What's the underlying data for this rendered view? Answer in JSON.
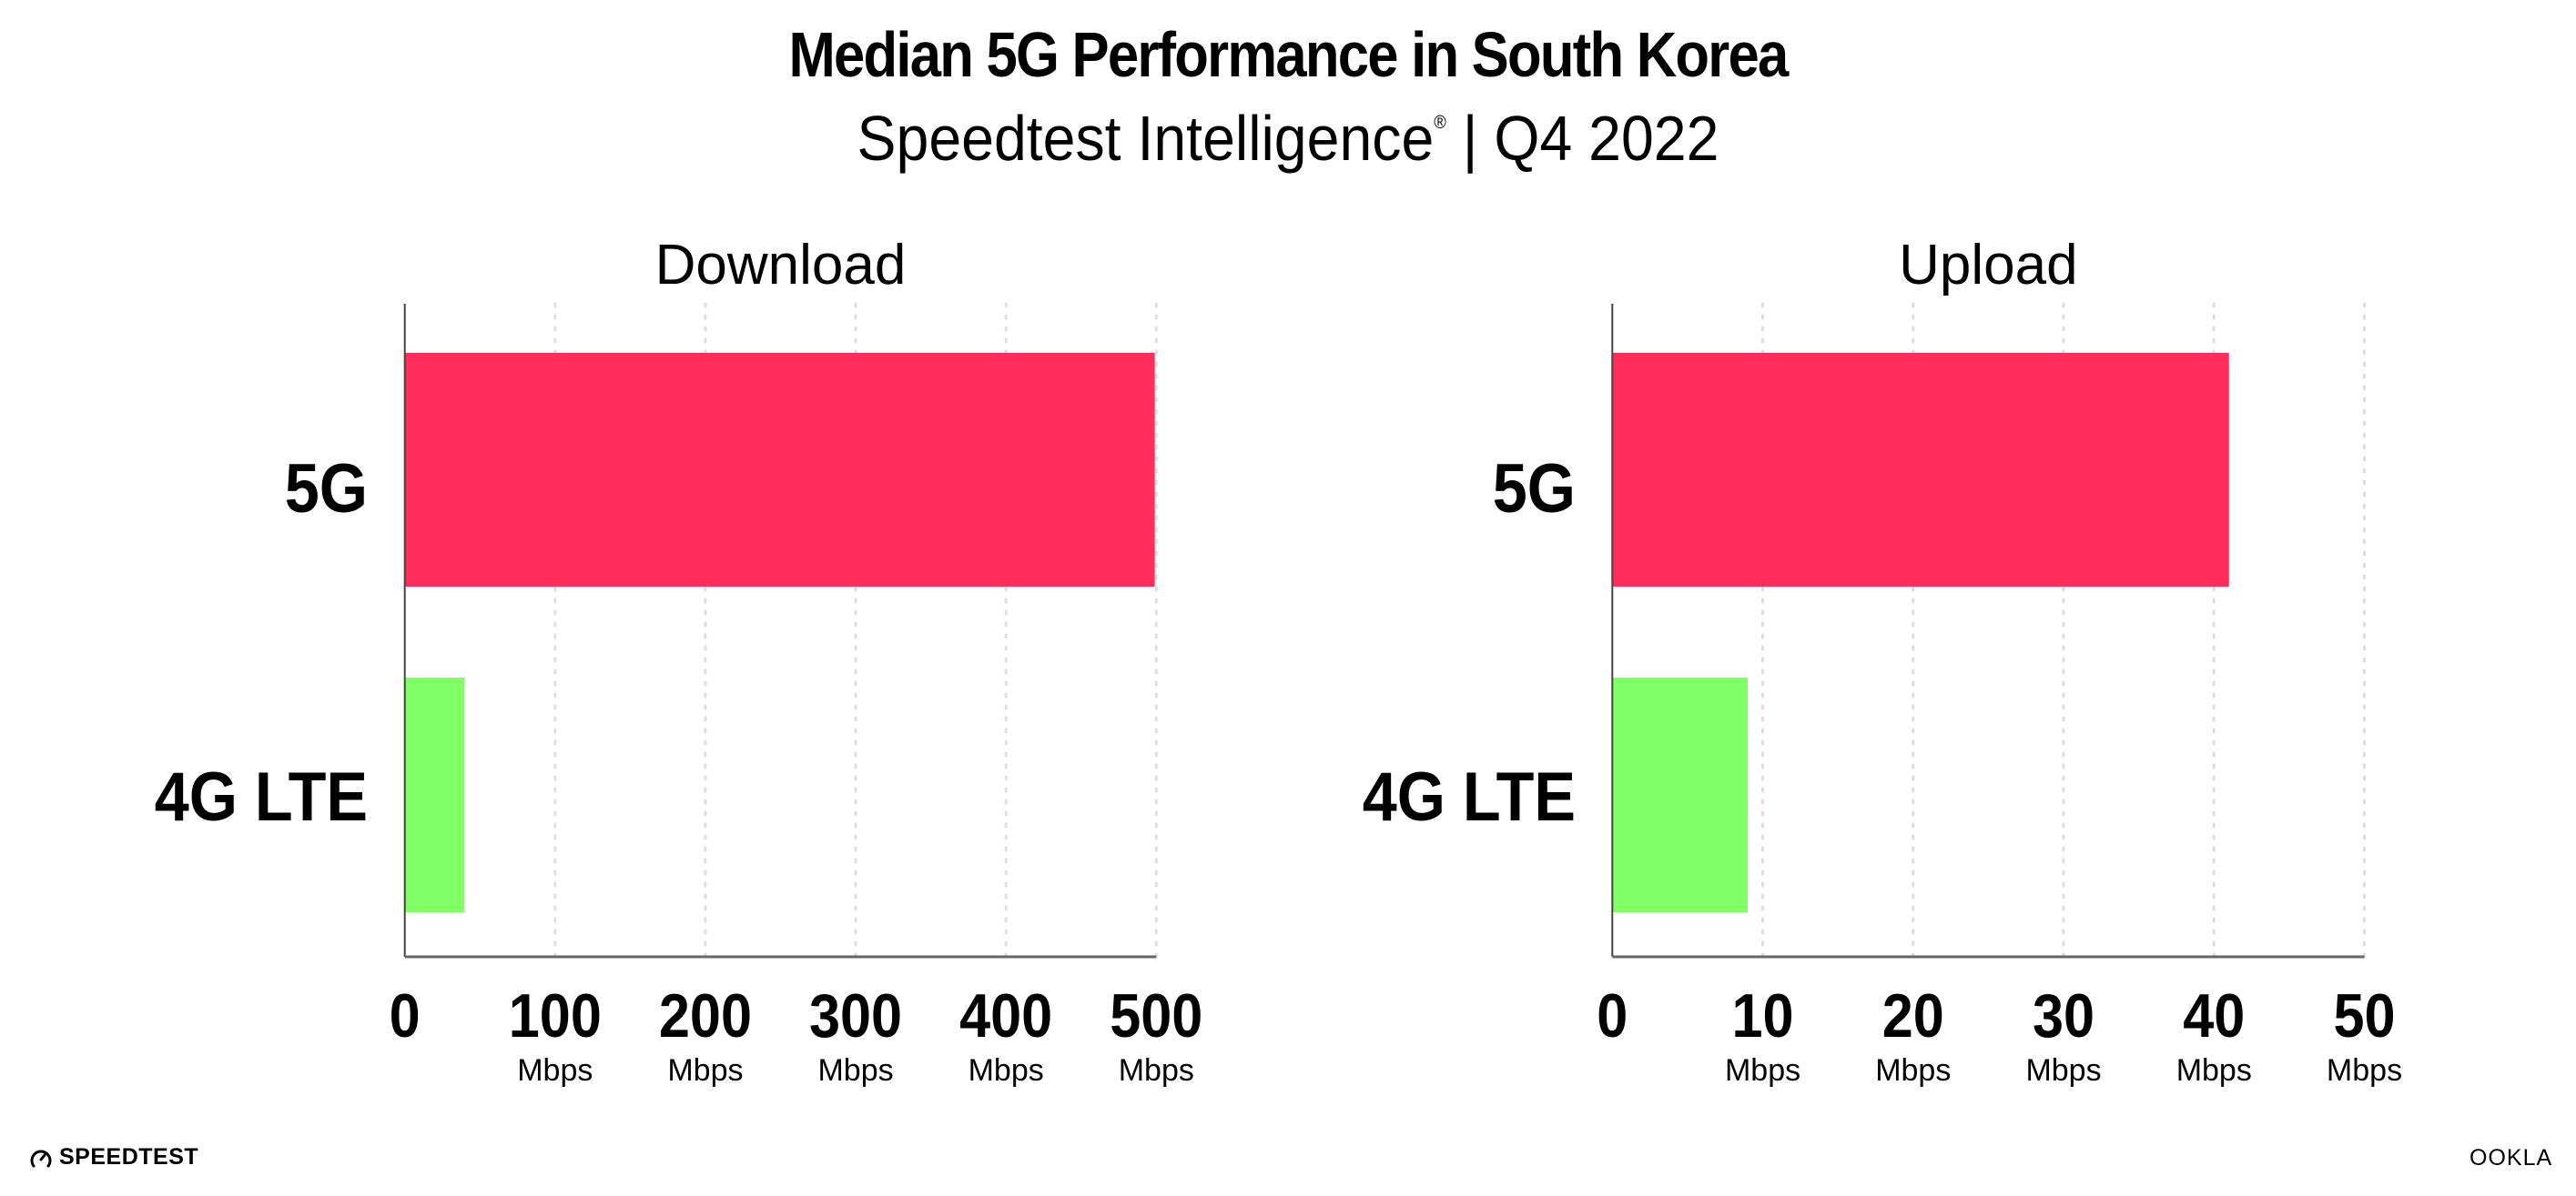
{
  "header": {
    "title": "Median 5G Performance in South Korea",
    "subtitle_main": "Speedtest Intelligence",
    "subtitle_mark": "®",
    "subtitle_rest": " | Q4 2022"
  },
  "colors": {
    "5G": "#ff2d5a",
    "4G LTE": "#80ff66",
    "grid": "#dcdde8",
    "axis": "#666666"
  },
  "chart_data": [
    {
      "type": "bar",
      "orientation": "horizontal",
      "title": "Download",
      "categories": [
        "5G",
        "4G LTE"
      ],
      "values": [
        499,
        39.7
      ],
      "xlim": [
        0,
        500
      ],
      "ticks": [
        0,
        100,
        200,
        300,
        400,
        500
      ],
      "tick_labels": [
        "0",
        "100",
        "200",
        "300",
        "400",
        "500"
      ],
      "tick_unit": "Mbps",
      "grid": true
    },
    {
      "type": "bar",
      "orientation": "horizontal",
      "title": "Upload",
      "categories": [
        "5G",
        "4G LTE"
      ],
      "values": [
        41.0,
        9.0
      ],
      "xlim": [
        0,
        50
      ],
      "ticks": [
        0,
        10,
        20,
        30,
        40,
        50
      ],
      "tick_labels": [
        "0",
        "10",
        "20",
        "30",
        "40",
        "50"
      ],
      "tick_unit": "Mbps",
      "grid": true
    }
  ],
  "footer": {
    "left_logo": "SPEEDTEST",
    "right_logo": "OOKLA"
  }
}
